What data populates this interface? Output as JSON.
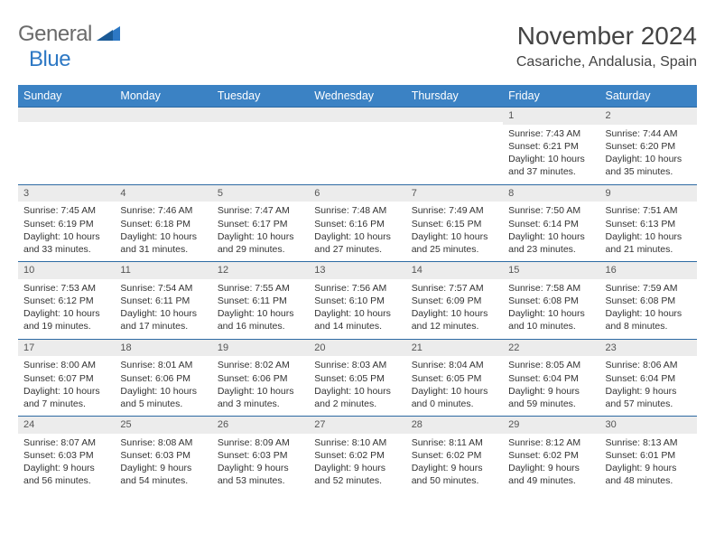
{
  "logo": {
    "text1": "General",
    "text2": "Blue"
  },
  "title": "November 2024",
  "location": "Casariche, Andalusia, Spain",
  "colors": {
    "header_bg": "#3b82c4",
    "header_text": "#ffffff",
    "day_num_bg": "#ececec",
    "row_border": "#2d6aa3",
    "logo_gray": "#6a6a6a",
    "logo_blue": "#2d78c4",
    "body_text": "#333333"
  },
  "layout": {
    "columns": 7,
    "rows": 5,
    "cell_font_size": 10.5,
    "header_font_size": 12.5,
    "title_font_size": 28,
    "location_font_size": 16
  },
  "weekdays": [
    "Sunday",
    "Monday",
    "Tuesday",
    "Wednesday",
    "Thursday",
    "Friday",
    "Saturday"
  ],
  "weeks": [
    [
      {
        "empty": true
      },
      {
        "empty": true
      },
      {
        "empty": true
      },
      {
        "empty": true
      },
      {
        "empty": true
      },
      {
        "day": "1",
        "sunrise": "Sunrise: 7:43 AM",
        "sunset": "Sunset: 6:21 PM",
        "daylight": "Daylight: 10 hours and 37 minutes."
      },
      {
        "day": "2",
        "sunrise": "Sunrise: 7:44 AM",
        "sunset": "Sunset: 6:20 PM",
        "daylight": "Daylight: 10 hours and 35 minutes."
      }
    ],
    [
      {
        "day": "3",
        "sunrise": "Sunrise: 7:45 AM",
        "sunset": "Sunset: 6:19 PM",
        "daylight": "Daylight: 10 hours and 33 minutes."
      },
      {
        "day": "4",
        "sunrise": "Sunrise: 7:46 AM",
        "sunset": "Sunset: 6:18 PM",
        "daylight": "Daylight: 10 hours and 31 minutes."
      },
      {
        "day": "5",
        "sunrise": "Sunrise: 7:47 AM",
        "sunset": "Sunset: 6:17 PM",
        "daylight": "Daylight: 10 hours and 29 minutes."
      },
      {
        "day": "6",
        "sunrise": "Sunrise: 7:48 AM",
        "sunset": "Sunset: 6:16 PM",
        "daylight": "Daylight: 10 hours and 27 minutes."
      },
      {
        "day": "7",
        "sunrise": "Sunrise: 7:49 AM",
        "sunset": "Sunset: 6:15 PM",
        "daylight": "Daylight: 10 hours and 25 minutes."
      },
      {
        "day": "8",
        "sunrise": "Sunrise: 7:50 AM",
        "sunset": "Sunset: 6:14 PM",
        "daylight": "Daylight: 10 hours and 23 minutes."
      },
      {
        "day": "9",
        "sunrise": "Sunrise: 7:51 AM",
        "sunset": "Sunset: 6:13 PM",
        "daylight": "Daylight: 10 hours and 21 minutes."
      }
    ],
    [
      {
        "day": "10",
        "sunrise": "Sunrise: 7:53 AM",
        "sunset": "Sunset: 6:12 PM",
        "daylight": "Daylight: 10 hours and 19 minutes."
      },
      {
        "day": "11",
        "sunrise": "Sunrise: 7:54 AM",
        "sunset": "Sunset: 6:11 PM",
        "daylight": "Daylight: 10 hours and 17 minutes."
      },
      {
        "day": "12",
        "sunrise": "Sunrise: 7:55 AM",
        "sunset": "Sunset: 6:11 PM",
        "daylight": "Daylight: 10 hours and 16 minutes."
      },
      {
        "day": "13",
        "sunrise": "Sunrise: 7:56 AM",
        "sunset": "Sunset: 6:10 PM",
        "daylight": "Daylight: 10 hours and 14 minutes."
      },
      {
        "day": "14",
        "sunrise": "Sunrise: 7:57 AM",
        "sunset": "Sunset: 6:09 PM",
        "daylight": "Daylight: 10 hours and 12 minutes."
      },
      {
        "day": "15",
        "sunrise": "Sunrise: 7:58 AM",
        "sunset": "Sunset: 6:08 PM",
        "daylight": "Daylight: 10 hours and 10 minutes."
      },
      {
        "day": "16",
        "sunrise": "Sunrise: 7:59 AM",
        "sunset": "Sunset: 6:08 PM",
        "daylight": "Daylight: 10 hours and 8 minutes."
      }
    ],
    [
      {
        "day": "17",
        "sunrise": "Sunrise: 8:00 AM",
        "sunset": "Sunset: 6:07 PM",
        "daylight": "Daylight: 10 hours and 7 minutes."
      },
      {
        "day": "18",
        "sunrise": "Sunrise: 8:01 AM",
        "sunset": "Sunset: 6:06 PM",
        "daylight": "Daylight: 10 hours and 5 minutes."
      },
      {
        "day": "19",
        "sunrise": "Sunrise: 8:02 AM",
        "sunset": "Sunset: 6:06 PM",
        "daylight": "Daylight: 10 hours and 3 minutes."
      },
      {
        "day": "20",
        "sunrise": "Sunrise: 8:03 AM",
        "sunset": "Sunset: 6:05 PM",
        "daylight": "Daylight: 10 hours and 2 minutes."
      },
      {
        "day": "21",
        "sunrise": "Sunrise: 8:04 AM",
        "sunset": "Sunset: 6:05 PM",
        "daylight": "Daylight: 10 hours and 0 minutes."
      },
      {
        "day": "22",
        "sunrise": "Sunrise: 8:05 AM",
        "sunset": "Sunset: 6:04 PM",
        "daylight": "Daylight: 9 hours and 59 minutes."
      },
      {
        "day": "23",
        "sunrise": "Sunrise: 8:06 AM",
        "sunset": "Sunset: 6:04 PM",
        "daylight": "Daylight: 9 hours and 57 minutes."
      }
    ],
    [
      {
        "day": "24",
        "sunrise": "Sunrise: 8:07 AM",
        "sunset": "Sunset: 6:03 PM",
        "daylight": "Daylight: 9 hours and 56 minutes."
      },
      {
        "day": "25",
        "sunrise": "Sunrise: 8:08 AM",
        "sunset": "Sunset: 6:03 PM",
        "daylight": "Daylight: 9 hours and 54 minutes."
      },
      {
        "day": "26",
        "sunrise": "Sunrise: 8:09 AM",
        "sunset": "Sunset: 6:03 PM",
        "daylight": "Daylight: 9 hours and 53 minutes."
      },
      {
        "day": "27",
        "sunrise": "Sunrise: 8:10 AM",
        "sunset": "Sunset: 6:02 PM",
        "daylight": "Daylight: 9 hours and 52 minutes."
      },
      {
        "day": "28",
        "sunrise": "Sunrise: 8:11 AM",
        "sunset": "Sunset: 6:02 PM",
        "daylight": "Daylight: 9 hours and 50 minutes."
      },
      {
        "day": "29",
        "sunrise": "Sunrise: 8:12 AM",
        "sunset": "Sunset: 6:02 PM",
        "daylight": "Daylight: 9 hours and 49 minutes."
      },
      {
        "day": "30",
        "sunrise": "Sunrise: 8:13 AM",
        "sunset": "Sunset: 6:01 PM",
        "daylight": "Daylight: 9 hours and 48 minutes."
      }
    ]
  ]
}
